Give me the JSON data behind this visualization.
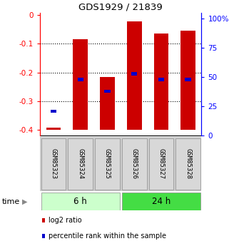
{
  "title": "GDS1929 / 21839",
  "samples": [
    "GSM85323",
    "GSM85324",
    "GSM85325",
    "GSM85326",
    "GSM85327",
    "GSM85328"
  ],
  "bar_bottoms": [
    -0.4,
    -0.4,
    -0.4,
    -0.4,
    -0.4,
    -0.4
  ],
  "bar_tops": [
    -0.392,
    -0.085,
    -0.215,
    -0.022,
    -0.065,
    -0.055
  ],
  "blue_y": [
    -0.335,
    -0.225,
    -0.265,
    -0.205,
    -0.225,
    -0.225
  ],
  "bar_color": "#cc0000",
  "blue_color": "#0000cc",
  "ylim_left": [
    -0.42,
    0.008
  ],
  "yticks_left": [
    0,
    -0.1,
    -0.2,
    -0.3,
    -0.4
  ],
  "ytick_labels_left": [
    "0",
    "-0.1",
    "-0.2",
    "-0.3",
    "-0.4"
  ],
  "yticks_right": [
    0,
    25,
    50,
    75,
    100
  ],
  "ytick_labels_right": [
    "0",
    "25",
    "50",
    "75",
    "100%"
  ],
  "groups": [
    {
      "label": "6 h",
      "samples": [
        0,
        1,
        2
      ],
      "color_light": "#ccffcc",
      "color_dark": "#44dd44"
    },
    {
      "label": "24 h",
      "samples": [
        3,
        4,
        5
      ],
      "color_light": "#44dd44",
      "color_dark": "#22cc22"
    }
  ],
  "time_label": "time",
  "legend_items": [
    {
      "label": "log2 ratio",
      "color": "#cc0000"
    },
    {
      "label": "percentile rank within the sample",
      "color": "#0000cc"
    }
  ],
  "background_color": "#ffffff",
  "bar_width": 0.55
}
